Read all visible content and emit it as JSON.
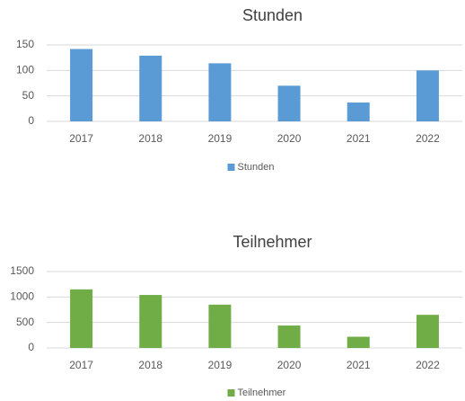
{
  "chart_data": [
    {
      "type": "bar",
      "title": "Stunden",
      "categories": [
        "2017",
        "2018",
        "2019",
        "2020",
        "2021",
        "2022"
      ],
      "series": [
        {
          "name": "Stunden",
          "color": "#5b9bd5",
          "values": [
            142,
            129,
            114,
            70,
            37,
            100
          ]
        }
      ],
      "ylim": [
        0,
        150
      ],
      "yticks": [
        0,
        50,
        100,
        150
      ],
      "grid": true,
      "legend": "bottom"
    },
    {
      "type": "bar",
      "title": "Teilnehmer",
      "categories": [
        "2017",
        "2018",
        "2019",
        "2020",
        "2021",
        "2022"
      ],
      "series": [
        {
          "name": "Teilnehmer",
          "color": "#70ad47",
          "values": [
            1150,
            1040,
            850,
            440,
            220,
            650
          ]
        }
      ],
      "ylim": [
        0,
        1500
      ],
      "yticks": [
        0,
        500,
        1000,
        1500
      ],
      "grid": true,
      "legend": "bottom"
    }
  ]
}
